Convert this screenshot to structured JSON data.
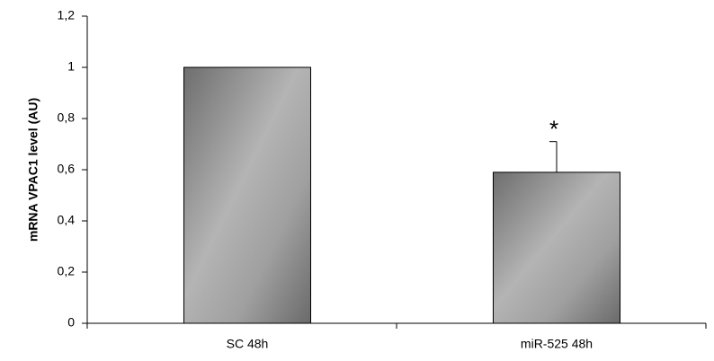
{
  "chart_data": {
    "type": "bar",
    "y_label": "mRNA VPAC1  level (AU)",
    "categories": [
      "SC 48h",
      "miR-525 48h"
    ],
    "values": [
      1.0,
      0.59
    ],
    "errors": [
      null,
      0.12
    ],
    "significance": [
      null,
      "*"
    ],
    "ylim": [
      0,
      1.2
    ],
    "yticks": [
      0,
      {
        "value": 0.2,
        "label": "0,2"
      },
      {
        "value": 0.4,
        "label": "0,4"
      },
      {
        "value": 0.6,
        "label": "0,6"
      },
      {
        "value": 0.8,
        "label": "0,8"
      },
      1,
      {
        "value": 1.2,
        "label": "1,2"
      }
    ],
    "grid": false
  }
}
